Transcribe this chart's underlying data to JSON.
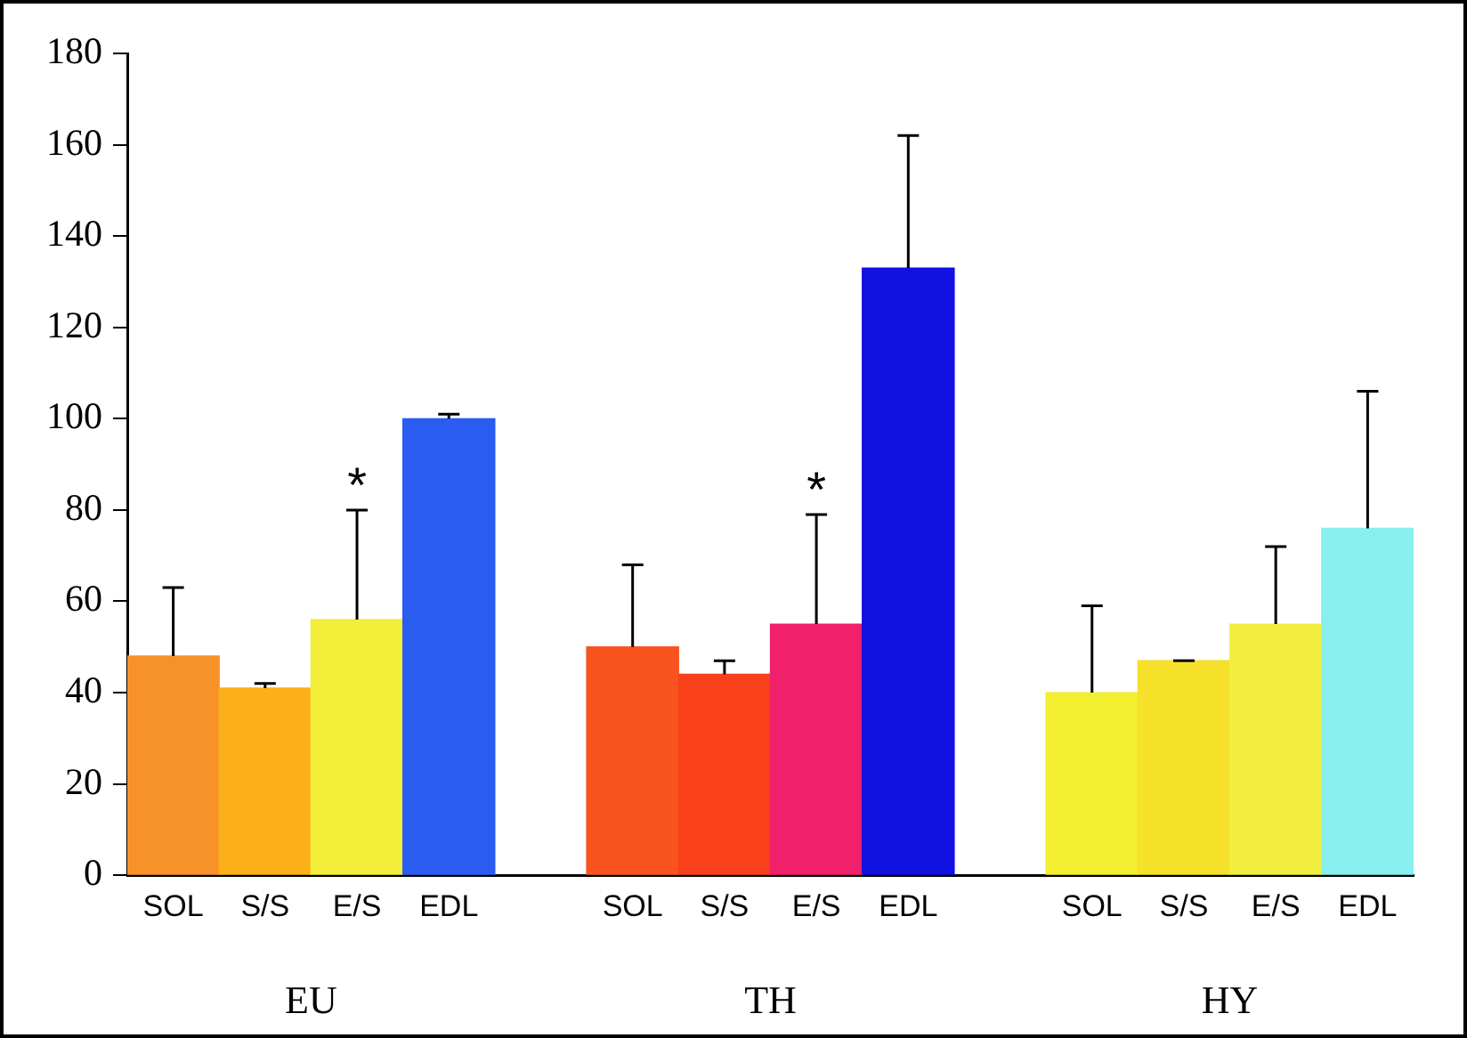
{
  "chart_data": {
    "type": "bar",
    "categories": [
      "SOL",
      "S/S",
      "E/S",
      "EDL",
      null,
      "SOL",
      "S/S",
      "E/S",
      "EDL",
      null,
      "SOL",
      "S/S",
      "E/S",
      "EDL"
    ],
    "values": [
      48,
      41,
      56,
      100,
      null,
      50,
      44,
      55,
      133,
      null,
      40,
      47,
      55,
      76
    ],
    "colors": [
      "#f7922a",
      "#fbb01a",
      "#f2ee3a",
      "#2b5cf0",
      "#ffffff",
      "#f95420",
      "#f8401a",
      "#f0206a",
      "#1010e0",
      "#ffffff",
      "#f2ee30",
      "#f5e02a",
      "#f2ee40",
      "#88eeee"
    ],
    "errors": [
      [
        48,
        63
      ],
      [
        41,
        42
      ],
      [
        56,
        80
      ],
      [
        100,
        101
      ],
      null,
      [
        50,
        68
      ],
      [
        44,
        47
      ],
      [
        55,
        79
      ],
      [
        133,
        162
      ],
      null,
      [
        40,
        59
      ],
      [
        47,
        47
      ],
      [
        55,
        72
      ],
      [
        76,
        106
      ]
    ],
    "value_labels": [
      null,
      null,
      "*",
      null,
      null,
      null,
      null,
      "*",
      null,
      null,
      null,
      null,
      null,
      null
    ],
    "annotations": [
      "EU",
      "TH",
      "HY"
    ],
    "ylim": [
      0,
      180
    ],
    "yticks": [
      0,
      20,
      40,
      60,
      80,
      100,
      120,
      140,
      160,
      180
    ],
    "grid": false,
    "legend": false
  }
}
